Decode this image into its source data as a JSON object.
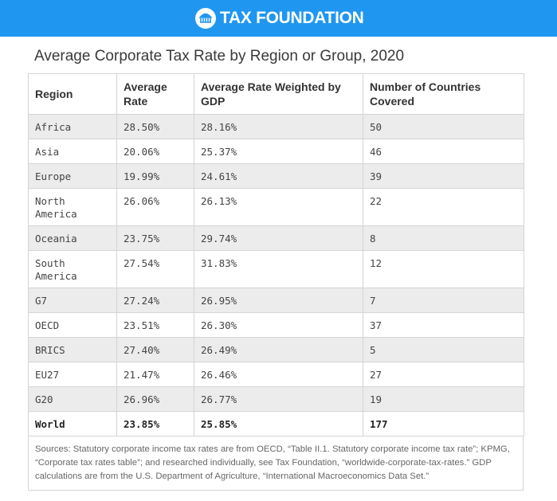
{
  "header": {
    "brand": "TAX FOUNDATION"
  },
  "title": "Average Corporate Tax Rate by Region or Group, 2020",
  "table": {
    "columns": [
      "Region",
      "Average Rate",
      "Average Rate Weighted by GDP",
      "Number of Countries Covered"
    ],
    "rows": [
      [
        "Africa",
        "28.50%",
        "28.16%",
        "50"
      ],
      [
        "Asia",
        "20.06%",
        "25.37%",
        "46"
      ],
      [
        "Europe",
        "19.99%",
        "24.61%",
        "39"
      ],
      [
        "North America",
        "26.06%",
        "26.13%",
        "22"
      ],
      [
        "Oceania",
        "23.75%",
        "29.74%",
        "8"
      ],
      [
        "South America",
        "27.54%",
        "31.83%",
        "12"
      ],
      [
        "G7",
        "27.24%",
        "26.95%",
        "7"
      ],
      [
        "OECD",
        "23.51%",
        "26.30%",
        "37"
      ],
      [
        "BRICS",
        "27.40%",
        "26.49%",
        "5"
      ],
      [
        "EU27",
        "21.47%",
        "26.46%",
        "27"
      ],
      [
        "G20",
        "26.96%",
        "26.77%",
        "19"
      ],
      [
        "World",
        "23.85%",
        "25.85%",
        "177"
      ]
    ]
  },
  "sources": "Sources: Statutory corporate income tax rates are from OECD, “Table II.1. Statutory corporate income tax rate”; KPMG, “Corporate tax rates table”; and researched individually, see Tax Foundation, “worldwide-corporate-tax-rates.” GDP calculations are from the U.S. Department of Agriculture, “International Macroeconomics Data Set.”"
}
